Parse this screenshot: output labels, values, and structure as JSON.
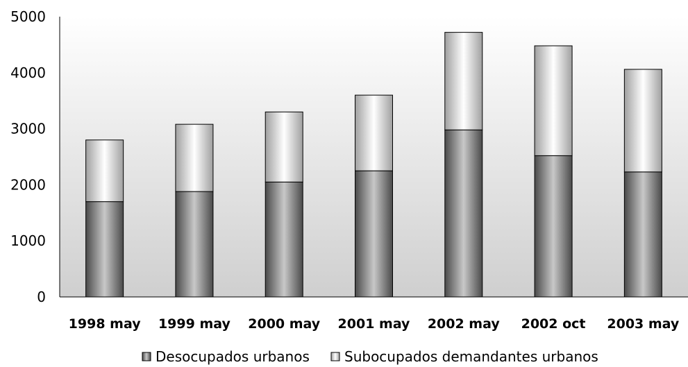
{
  "chart_data": {
    "type": "bar",
    "stacked": true,
    "categories": [
      "1998 may",
      "1999 may",
      "2000 may",
      "2001 may",
      "2002 may",
      "2002 oct",
      "2003 may"
    ],
    "series": [
      {
        "name": "Desocupados urbanos",
        "values": [
          1700,
          1880,
          2050,
          2250,
          2980,
          2520,
          2230
        ]
      },
      {
        "name": "Subocupados demandantes urbanos",
        "values": [
          1100,
          1200,
          1250,
          1350,
          1740,
          1960,
          1830
        ]
      }
    ],
    "ylim": [
      0,
      5000
    ],
    "yticks": [
      0,
      1000,
      2000,
      3000,
      4000,
      5000
    ],
    "grid": false,
    "legend_position": "bottom",
    "colors": {
      "series_0_dark": "#4a4a4a",
      "series_0_light": "#c8c8c8",
      "series_1_dark": "#a0a0a0",
      "series_1_light": "#ffffff",
      "plot_bg_top": "#ffffff",
      "plot_bg_bottom": "#cfcfcf"
    }
  }
}
